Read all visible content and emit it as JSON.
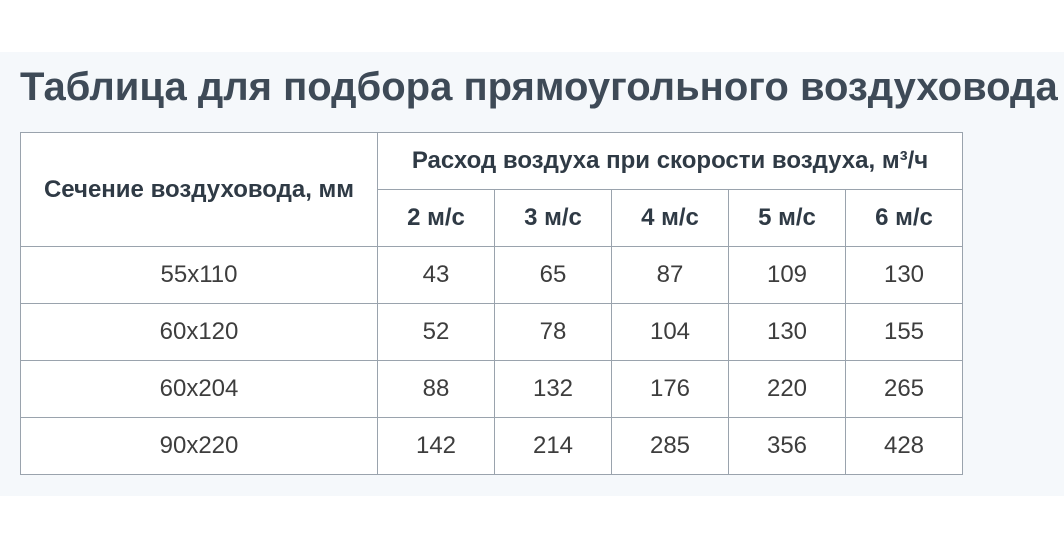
{
  "title": "Таблица для подбора прямоугольного воздуховода",
  "table": {
    "section_header": "Сечение воздуховода, мм",
    "flow_header": "Расход воздуха при скорости воздуха, м³/ч",
    "speeds": [
      "2 м/с",
      "3 м/с",
      "4 м/с",
      "5 м/с",
      "6 м/с"
    ],
    "rows": [
      {
        "section": "55х110",
        "values": [
          "43",
          "65",
          "87",
          "109",
          "130"
        ]
      },
      {
        "section": "60х120",
        "values": [
          "52",
          "78",
          "104",
          "130",
          "155"
        ]
      },
      {
        "section": "60х204",
        "values": [
          "88",
          "132",
          "176",
          "220",
          "265"
        ]
      },
      {
        "section": "90х220",
        "values": [
          "142",
          "214",
          "285",
          "356",
          "428"
        ]
      }
    ]
  }
}
